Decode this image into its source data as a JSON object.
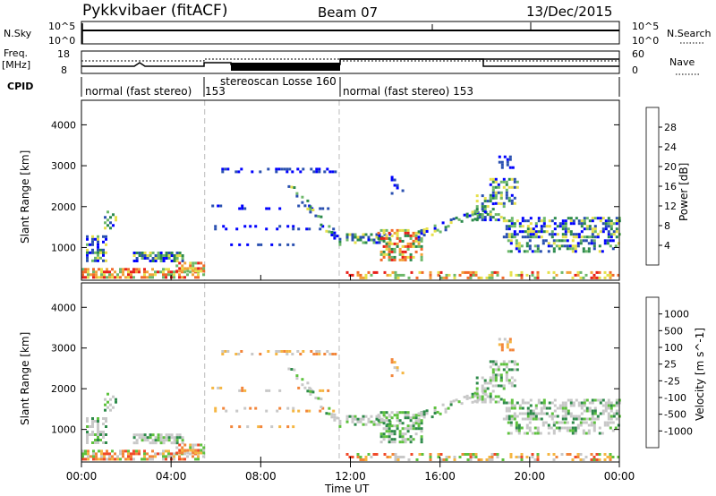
{
  "header": {
    "station": "Pykkvibaer (fitACF)",
    "beam": "Beam 07",
    "date": "13/Dec/2015"
  },
  "status_panels": {
    "nsky": {
      "left_label": "N.Sky",
      "tick_top": "10^5",
      "tick_bottom": "10^0",
      "right_label": "N.Search",
      "right_tick_top": "10^5",
      "right_tick_bottom": "10^0"
    },
    "freq": {
      "left_label_1": "Freq.",
      "left_label_2": "[MHz]",
      "tick_top": "18",
      "tick_bottom": "8",
      "right_label": "Nave",
      "right_tick_top": "60",
      "right_tick_bottom": "0"
    },
    "cpid": {
      "label": "CPID",
      "segments": [
        {
          "text": "normal (fast stereo)",
          "sub": "153"
        },
        {
          "text": "stereoscan Losse 160",
          "sub": "153"
        },
        {
          "text": "normal (fast stereo) 153",
          "sub": ""
        }
      ]
    }
  },
  "chart_data": [
    {
      "type": "heatmap",
      "ylabel": "Slant Range [km]",
      "yticks": [
        "1000",
        "2000",
        "3000",
        "4000"
      ],
      "ylim": [
        200,
        4600
      ],
      "xlim": [
        0,
        24
      ],
      "colorbar": {
        "label": "Power [dB]",
        "ticks": [
          "4",
          "8",
          "12",
          "16",
          "20",
          "24",
          "28"
        ],
        "colors": [
          "#0000ff",
          "#2a50b0",
          "#2c8a4c",
          "#6db86a",
          "#e6e04a",
          "#f2a23a",
          "#f26a2a",
          "#e8201a"
        ]
      },
      "vlines_hours": [
        5.5,
        11.5
      ]
    },
    {
      "type": "heatmap",
      "ylabel": "Slant Range [km]",
      "yticks": [
        "1000",
        "2000",
        "3000",
        "4000"
      ],
      "ylim": [
        200,
        4600
      ],
      "xlim": [
        0,
        24
      ],
      "colorbar": {
        "label": "Velocity [m s^-1]",
        "ticks": [
          "1000",
          "500",
          "100",
          "25",
          "-25",
          "-100",
          "-500",
          "-1000"
        ],
        "colors": [
          "#1f3aa8",
          "#3b6fc4",
          "#2e8a4a",
          "#5ec23e",
          "#c8c8c8",
          "#f5b642",
          "#f2853a",
          "#f04a2a",
          "#e01010"
        ]
      },
      "vlines_hours": [
        5.5,
        11.5
      ]
    }
  ],
  "x_axis": {
    "ticks": [
      "00:00",
      "04:00",
      "08:00",
      "12:00",
      "16:00",
      "20:00",
      "00:00"
    ],
    "tick_hours": [
      0,
      4,
      8,
      12,
      16,
      20,
      24
    ],
    "label": "Time UT"
  }
}
